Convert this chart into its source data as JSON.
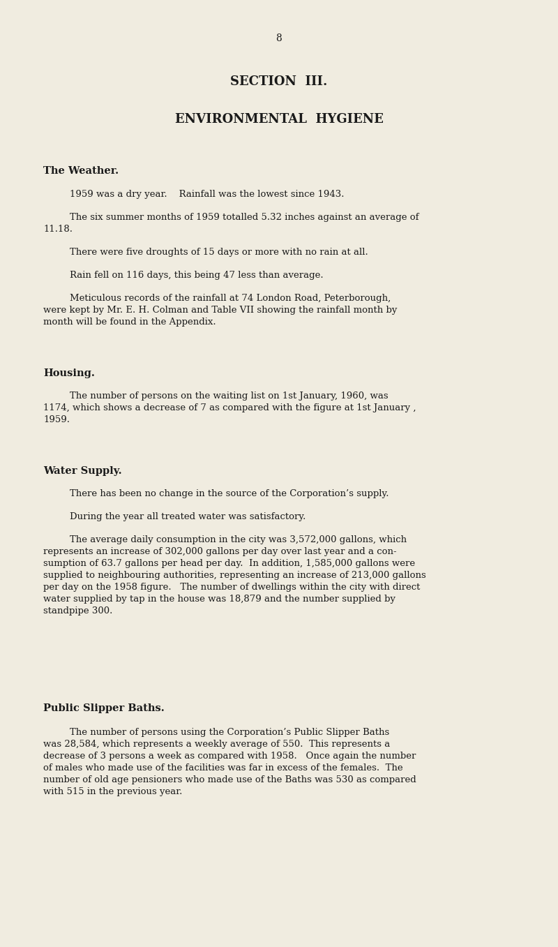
{
  "background_color": "#f0ece0",
  "text_color": "#1a1a1a",
  "page_number": "8",
  "section_title": "SECTION  III.",
  "section_subtitle": "ENVIRONMENTAL  HYGIENE",
  "heading1": "The Weather.",
  "heading2": "Housing.",
  "heading3": "Water Supply.",
  "heading4": "Public Slipper Baths.",
  "figsize": [
    8.0,
    13.57
  ],
  "dpi": 100
}
